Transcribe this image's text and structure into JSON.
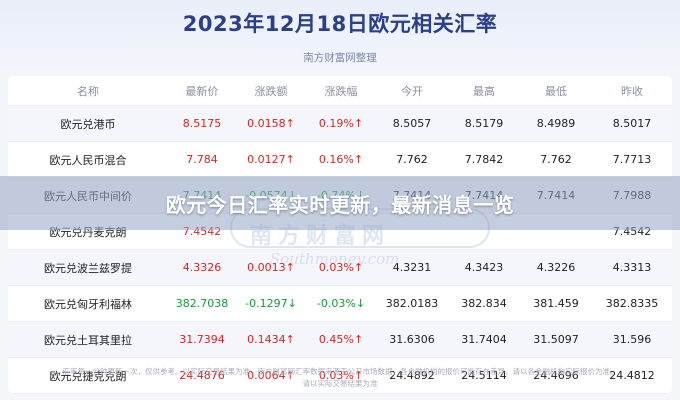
{
  "header": {
    "title": "2023年12月18日欧元相关汇率",
    "subtitle": "南方财富网整理"
  },
  "table": {
    "columns": [
      "名称",
      "最新价",
      "涨跌额",
      "涨跌幅",
      "今开",
      "最高",
      "最低",
      "昨收"
    ],
    "rows": [
      {
        "name": "欧元兑港币",
        "latest": "8.5175",
        "change": "0.0158↑",
        "pct": "0.19%↑",
        "open": "8.5057",
        "high": "8.5179",
        "low": "8.4989",
        "prev": "8.5017",
        "dir": "up"
      },
      {
        "name": "欧元人民币混合",
        "latest": "7.784",
        "change": "0.0127↑",
        "pct": "0.16%↑",
        "open": "7.762",
        "high": "7.7842",
        "low": "7.762",
        "prev": "7.7713",
        "dir": "up"
      },
      {
        "name": "欧元人民币中间价",
        "latest": "7.7414",
        "change": "-0.0574↓",
        "pct": "-0.74%↓",
        "open": "7.7414",
        "high": "7.7414",
        "low": "7.7414",
        "prev": "7.7988",
        "dir": "down"
      },
      {
        "name": "欧元兑丹麦克朗",
        "latest": "7.4542",
        "change": "",
        "pct": "",
        "open": "",
        "high": "",
        "low": "",
        "prev": "7.4542",
        "dir": "up"
      },
      {
        "name": "欧元兑波兰兹罗提",
        "latest": "4.3326",
        "change": "0.0013↑",
        "pct": "0.03%↑",
        "open": "4.3231",
        "high": "4.3423",
        "low": "4.3226",
        "prev": "4.3313",
        "dir": "up"
      },
      {
        "name": "欧元兑匈牙利福林",
        "latest": "382.7038",
        "change": "-0.1297↓",
        "pct": "-0.03%↓",
        "open": "382.0183",
        "high": "382.834",
        "low": "381.459",
        "prev": "382.8335",
        "dir": "down"
      },
      {
        "name": "欧元兑土耳其里拉",
        "latest": "31.7394",
        "change": "0.1434↑",
        "pct": "0.45%↑",
        "open": "31.6306",
        "high": "31.7404",
        "low": "31.5097",
        "prev": "31.596",
        "dir": "up"
      },
      {
        "name": "欧元兑捷克克朗",
        "latest": "24.4876",
        "change": "0.0064↑",
        "pct": "0.03%↑",
        "open": "24.4892",
        "high": "24.5114",
        "low": "24.4696",
        "prev": "24.4812",
        "dir": "up"
      }
    ]
  },
  "banner": {
    "text": "欧元今日汇率实时更新，最新消息一览"
  },
  "watermark": {
    "cn": "南方财富网",
    "en": "Southmoney.com"
  },
  "footer": {
    "line1": "汇率每一分钟更新一次，仅供参考。以实际交易结果为准。南方财富网汇率数据来源于公开市场数据，各金融机构的报价可能存在差异，请以各金融机构实际报价为准。",
    "line2": "请以实际交易结果为准"
  },
  "colors": {
    "title": "#2a3f8c",
    "up": "#e02020",
    "down": "#159a3c"
  }
}
